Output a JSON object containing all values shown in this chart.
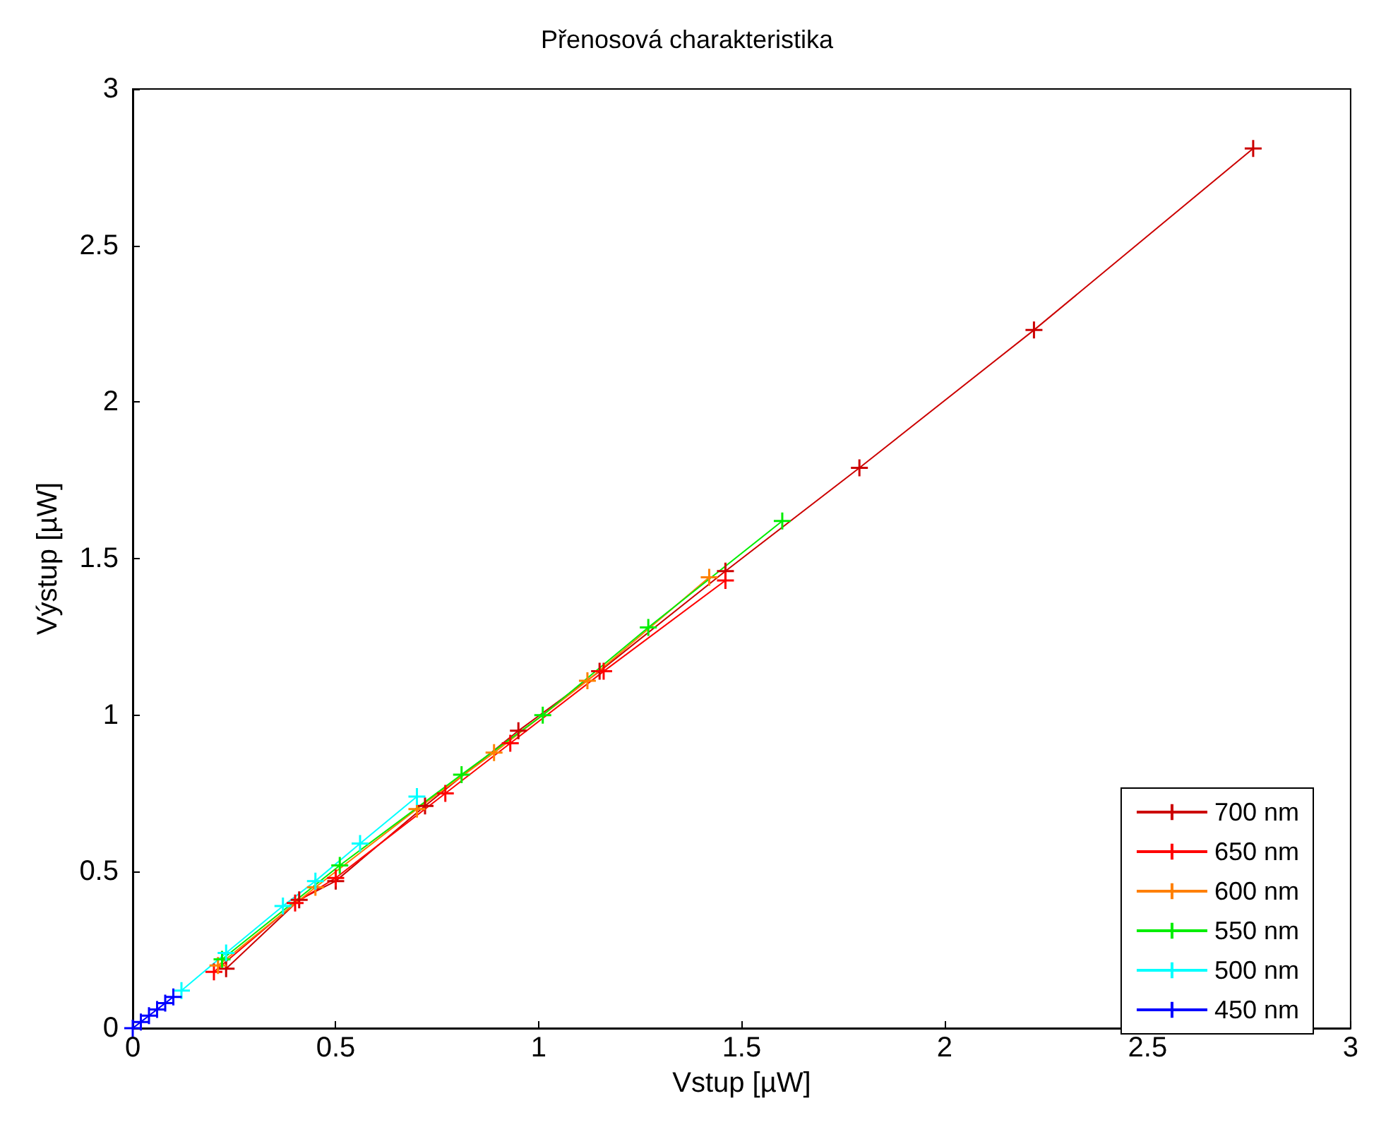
{
  "chart_data": {
    "type": "line",
    "title": "Přenosová charakteristika",
    "xlabel": "Vstup [µW]",
    "ylabel": "Výstup [µW]",
    "xlim": [
      0,
      3
    ],
    "ylim": [
      0,
      3
    ],
    "xticks": [
      0,
      0.5,
      1,
      1.5,
      2,
      2.5,
      3
    ],
    "yticks": [
      0,
      0.5,
      1,
      1.5,
      2,
      2.5,
      3
    ],
    "grid": false,
    "legend": "bottom right",
    "marker": "cross",
    "line_style": "solid",
    "series": [
      {
        "name": "700 nm",
        "color": "#cc0000",
        "x": [
          0.23,
          0.41,
          0.5,
          0.72,
          0.95,
          1.15,
          1.46,
          1.79,
          2.22,
          2.76
        ],
        "values": [
          0.19,
          0.41,
          0.47,
          0.71,
          0.95,
          1.14,
          1.46,
          1.79,
          2.23,
          2.81
        ]
      },
      {
        "name": "650 nm",
        "color": "#ff0000",
        "x": [
          0.2,
          0.4,
          0.5,
          0.77,
          0.93,
          1.16,
          1.46
        ],
        "values": [
          0.18,
          0.4,
          0.48,
          0.75,
          0.91,
          1.14,
          1.43
        ]
      },
      {
        "name": "600 nm",
        "color": "#ff8000",
        "x": [
          0.21,
          0.45,
          0.7,
          0.89,
          1.12,
          1.42
        ],
        "values": [
          0.2,
          0.45,
          0.7,
          0.88,
          1.11,
          1.44
        ]
      },
      {
        "name": "550 nm",
        "color": "#00ee00",
        "x": [
          0.22,
          0.51,
          0.81,
          1.01,
          1.27,
          1.6
        ],
        "values": [
          0.22,
          0.52,
          0.81,
          1.0,
          1.28,
          1.62
        ]
      },
      {
        "name": "500 nm",
        "color": "#00ffff",
        "x": [
          0.12,
          0.23,
          0.37,
          0.45,
          0.56,
          0.7
        ],
        "values": [
          0.12,
          0.24,
          0.39,
          0.47,
          0.59,
          0.74
        ]
      },
      {
        "name": "450 nm",
        "color": "#0000ff",
        "x": [
          0,
          0.02,
          0.04,
          0.06,
          0.08,
          0.1
        ],
        "values": [
          0,
          0.02,
          0.04,
          0.06,
          0.08,
          0.1
        ]
      }
    ]
  }
}
